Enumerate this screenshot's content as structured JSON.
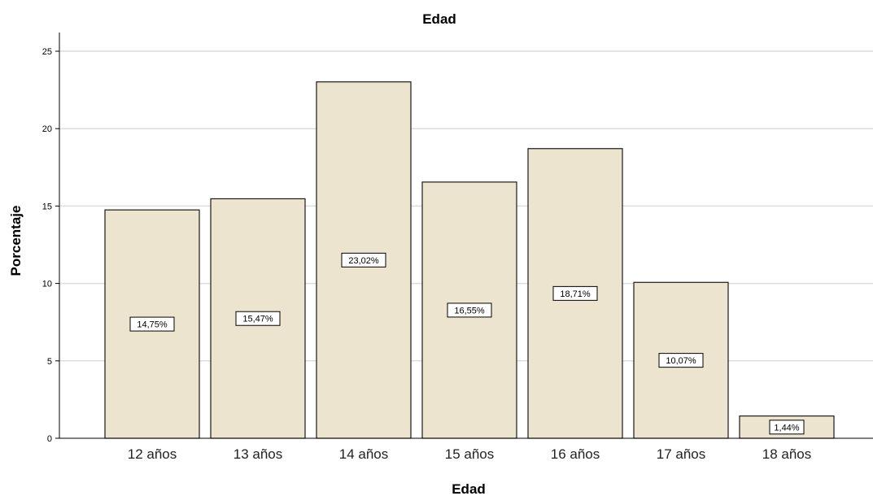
{
  "chart_data": {
    "type": "bar",
    "title": "Edad",
    "xlabel": "Edad",
    "ylabel": "Porcentaje",
    "categories": [
      "12 años",
      "13 años",
      "14 años",
      "15 años",
      "16 años",
      "17 años",
      "18 años"
    ],
    "values": [
      14.75,
      15.47,
      23.02,
      16.55,
      18.71,
      10.07,
      1.44
    ],
    "data_labels": [
      "14,75%",
      "15,47%",
      "23,02%",
      "16,55%",
      "18,71%",
      "10,07%",
      "1,44%"
    ],
    "ylim": [
      0,
      25
    ],
    "yticks": [
      "0",
      "5",
      "10",
      "15",
      "20",
      "25"
    ],
    "grid": true,
    "colors": {
      "bar_fill": "#ede4cf",
      "bar_stroke": "#1a1a1a",
      "grid": "#dcdcdc",
      "label_box": "#ffffff"
    }
  }
}
